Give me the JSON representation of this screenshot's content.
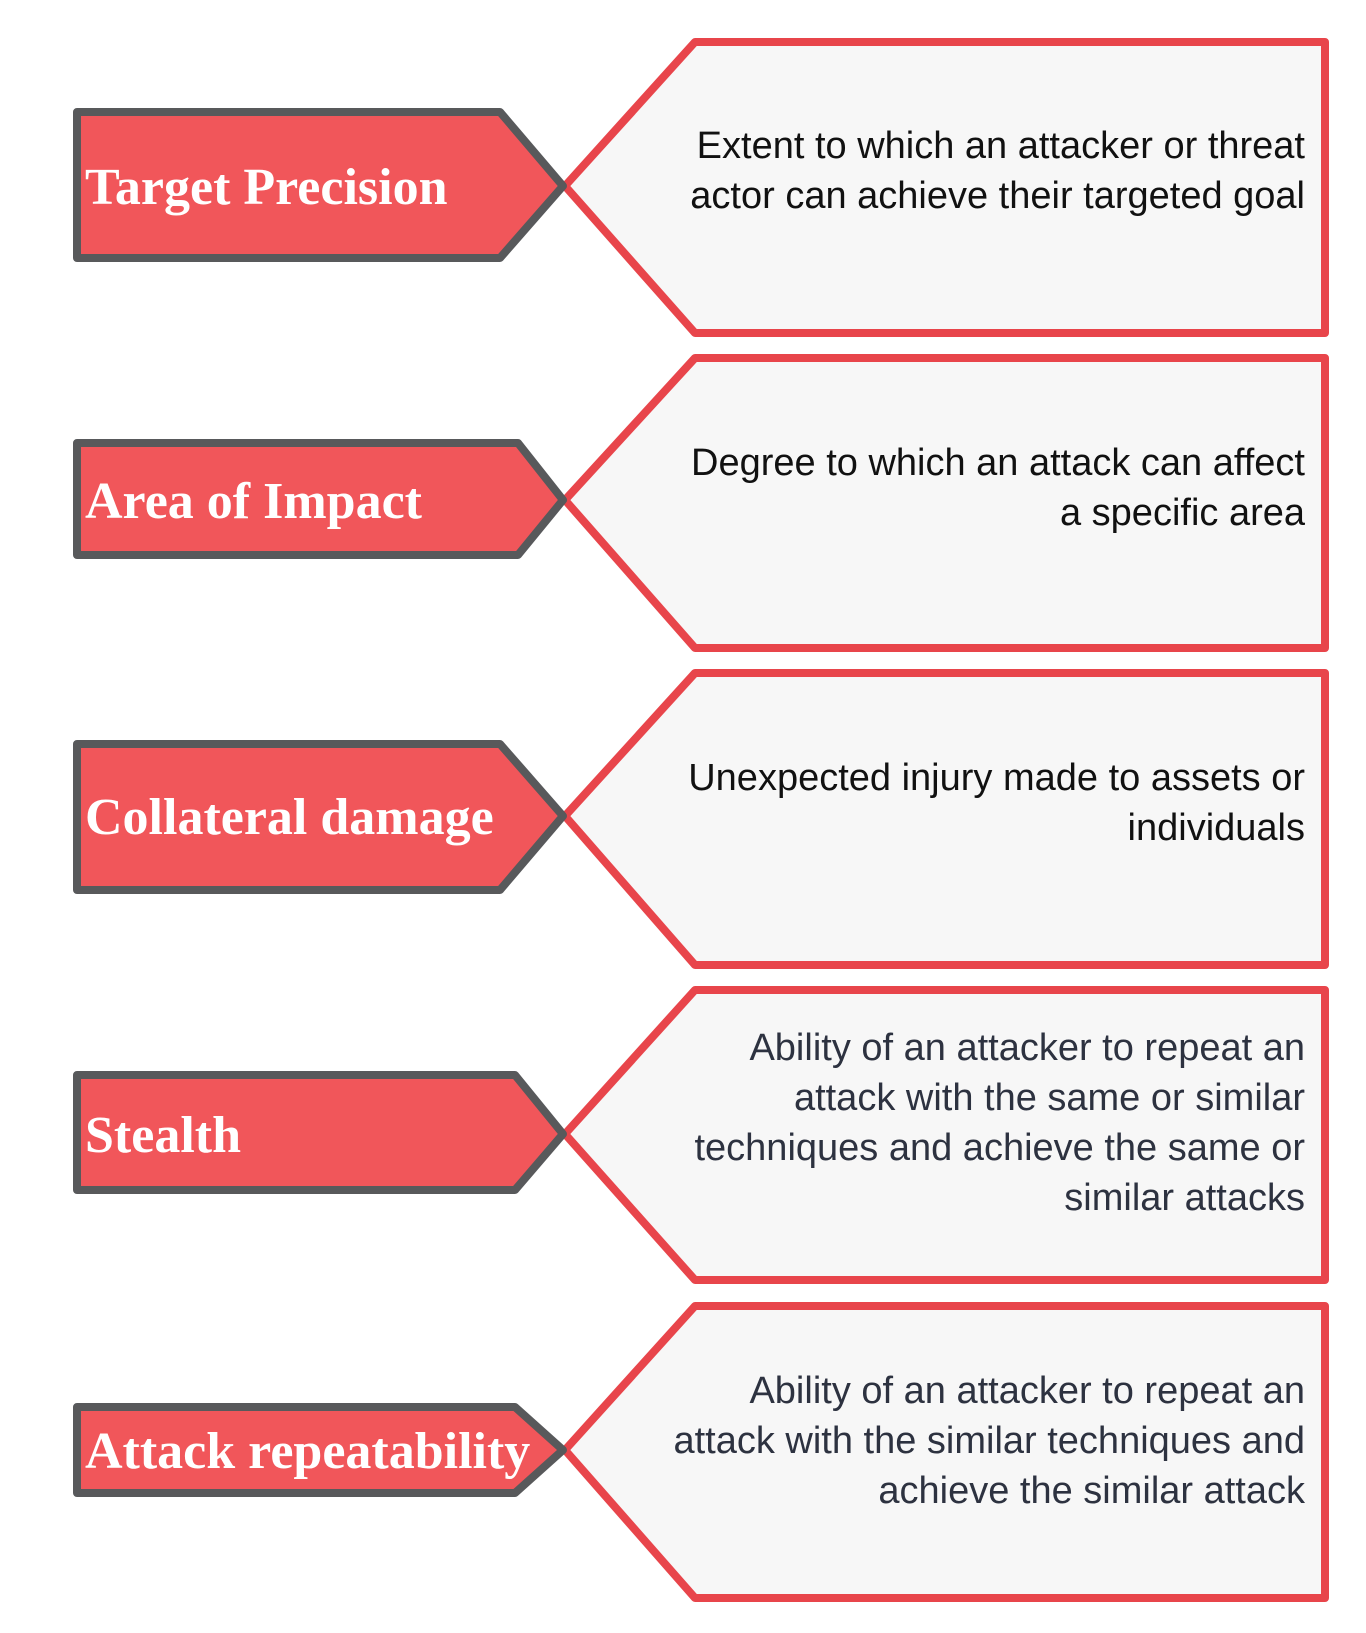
{
  "colors": {
    "label_fill": "#f1565a",
    "label_stroke": "#58595b",
    "panel_fill": "#f7f7f7",
    "panel_stroke": "#e8454b",
    "text_dark": "#111111",
    "text_slate": "#2d3240"
  },
  "rows": [
    {
      "label": "Target Precision",
      "description": [
        "Extent to which an attacker or threat",
        "actor can achieve their targeted goal"
      ]
    },
    {
      "label": "Area of Impact",
      "description": [
        "Degree to which an attack can affect",
        "a specific area"
      ]
    },
    {
      "label": "Collateral damage",
      "description": [
        "Unexpected injury made to assets or",
        "individuals"
      ]
    },
    {
      "label": "Stealth",
      "description": [
        "Ability of an attacker to repeat an",
        "attack with the same or similar",
        "techniques and achieve the same or",
        "similar attacks"
      ]
    },
    {
      "label": "Attack repeatability",
      "description": [
        "Ability of an attacker to repeat an",
        "attack with the similar techniques and",
        "achieve the similar attack"
      ]
    }
  ]
}
